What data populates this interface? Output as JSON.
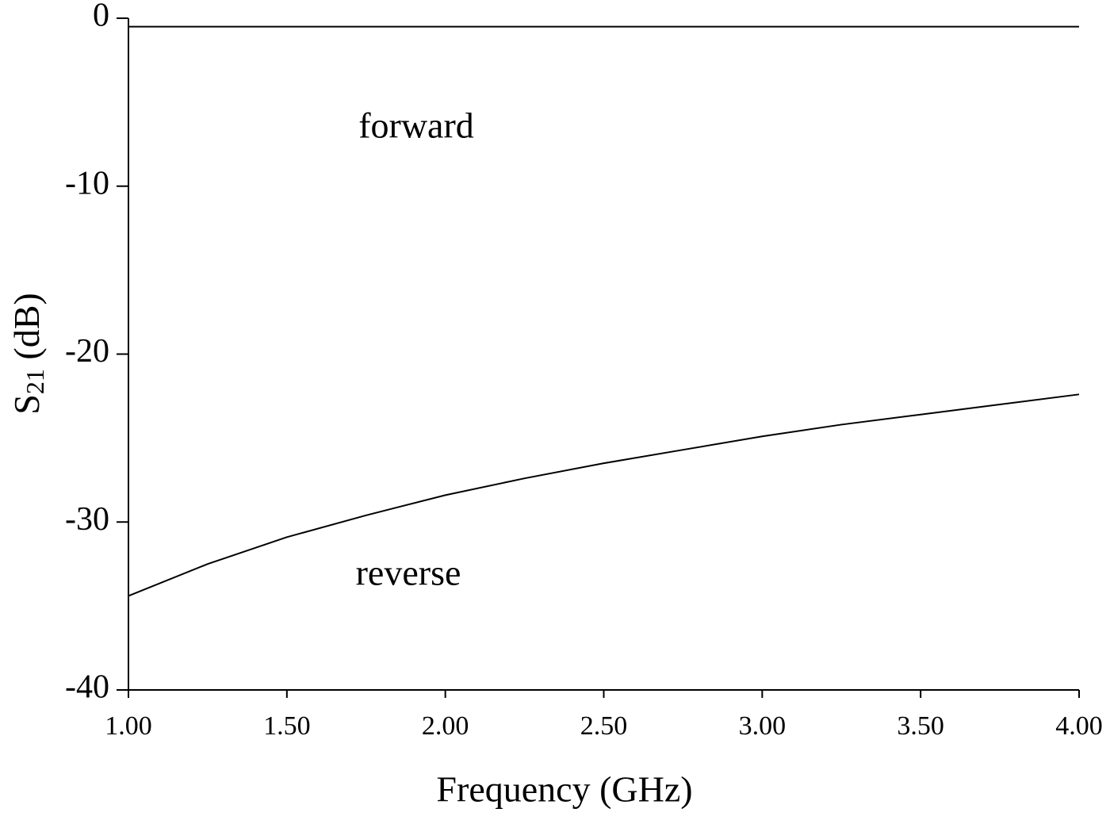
{
  "chart_data": {
    "type": "line",
    "x": [
      1.0,
      1.25,
      1.5,
      1.75,
      2.0,
      2.25,
      2.5,
      2.75,
      3.0,
      3.25,
      3.5,
      3.75,
      4.0
    ],
    "series": [
      {
        "name": "forward",
        "color": "#000000",
        "values": [
          -0.5,
          -0.5,
          -0.5,
          -0.5,
          -0.5,
          -0.5,
          -0.5,
          -0.5,
          -0.5,
          -0.5,
          -0.5,
          -0.5,
          -0.5
        ]
      },
      {
        "name": "reverse",
        "color": "#000000",
        "values": [
          -34.4,
          -32.5,
          -30.9,
          -29.6,
          -28.4,
          -27.4,
          -26.5,
          -25.7,
          -24.9,
          -24.2,
          -23.6,
          -23.0,
          -22.4
        ]
      }
    ],
    "xlabel": "Frequency (GHz)",
    "ylabel": {
      "base": "S",
      "sub": "21",
      "rest": " (dB)"
    },
    "xlim": [
      1.0,
      4.0
    ],
    "xticks": [
      {
        "value": 1.0,
        "label": "1.00"
      },
      {
        "value": 1.5,
        "label": "1.50"
      },
      {
        "value": 2.0,
        "label": "2.00"
      },
      {
        "value": 2.5,
        "label": "2.50"
      },
      {
        "value": 3.0,
        "label": "3.00"
      },
      {
        "value": 3.5,
        "label": "3.50"
      },
      {
        "value": 4.0,
        "label": "4.00"
      }
    ],
    "ylim": [
      -40,
      0
    ],
    "yticks": [
      0,
      -10,
      -20,
      -30,
      -40
    ],
    "grid": false
  }
}
